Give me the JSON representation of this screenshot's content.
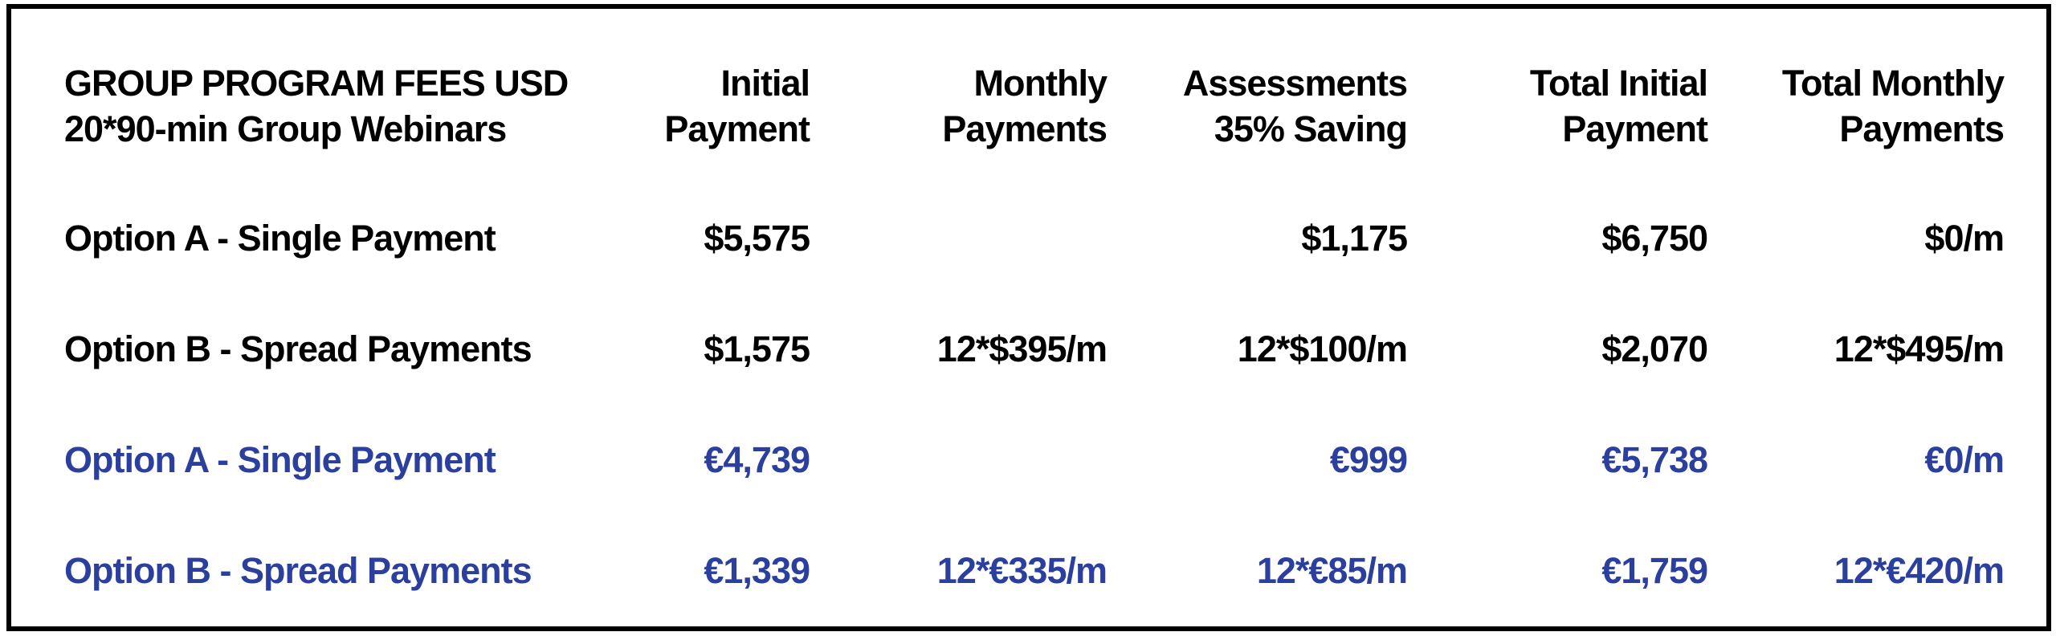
{
  "colors": {
    "background": "#ffffff",
    "frame_border": "#000000",
    "text_usd": "#000000",
    "text_eur": "#2a3f9e"
  },
  "table": {
    "title_line1": "GROUP PROGRAM FEES USD",
    "title_line2": "20*90-min Group Webinars",
    "columns": [
      {
        "line1": "Initial",
        "line2": "Payment"
      },
      {
        "line1": "Monthly",
        "line2": "Payments"
      },
      {
        "line1": "Assessments",
        "line2": "35% Saving"
      },
      {
        "line1": "Total Initial",
        "line2": "Payment"
      },
      {
        "line1": "Total Monthly",
        "line2": "Payments"
      }
    ],
    "rows": [
      {
        "label": "Option A - Single Payment",
        "currency": "USD",
        "initial_payment": "$5,575",
        "monthly_payments": "",
        "assessments": "$1,175",
        "total_initial_payment": "$6,750",
        "total_monthly_payments": "$0/m"
      },
      {
        "label": "Option B - Spread Payments",
        "currency": "USD",
        "initial_payment": "$1,575",
        "monthly_payments": "12*$395/m",
        "assessments": "12*$100/m",
        "total_initial_payment": "$2,070",
        "total_monthly_payments": "12*$495/m"
      },
      {
        "label": "Option A - Single Payment",
        "currency": "EUR",
        "initial_payment": "€4,739",
        "monthly_payments": "",
        "assessments": "€999",
        "total_initial_payment": "€5,738",
        "total_monthly_payments": "€0/m"
      },
      {
        "label": "Option B - Spread Payments",
        "currency": "EUR",
        "initial_payment": "€1,339",
        "monthly_payments": "12*€335/m",
        "assessments": "12*€85/m",
        "total_initial_payment": "€1,759",
        "total_monthly_payments": "12*€420/m"
      }
    ]
  }
}
